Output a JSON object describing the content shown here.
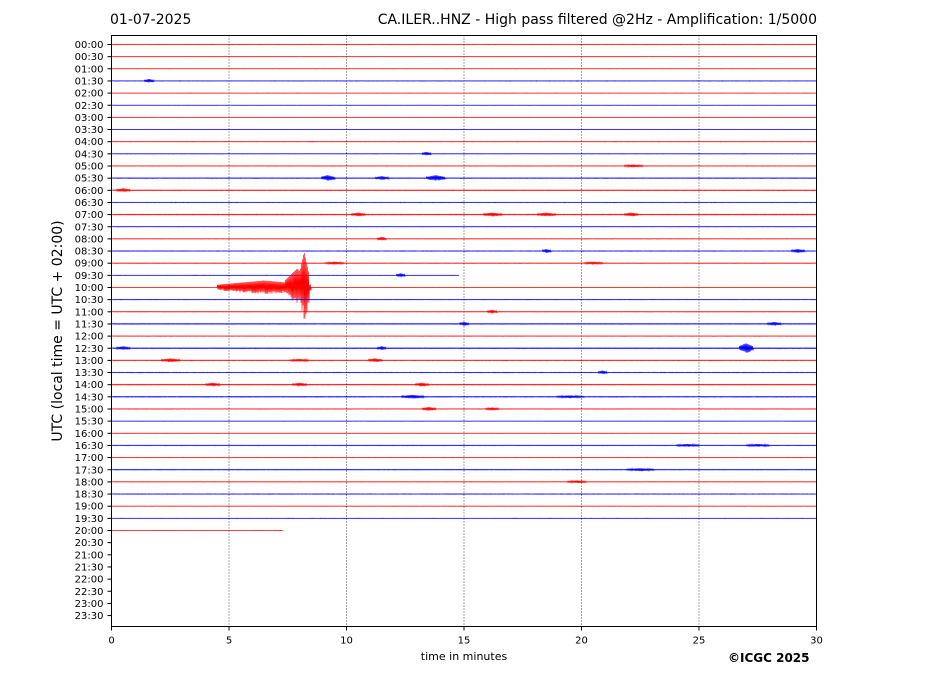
{
  "header": {
    "date": "01-07-2025",
    "title": "CA.ILER..HNZ - High pass filtered @2Hz - Amplification: 1/5000"
  },
  "copyright": "©ICGC 2025",
  "chart_data": {
    "type": "line",
    "title": "CA.ILER..HNZ - High pass filtered @2Hz - Amplification: 1/5000",
    "xlabel": "time in minutes",
    "ylabel": "UTC (local time = UTC + 02:00)",
    "xlim": [
      0,
      30
    ],
    "x_ticks": [
      "0",
      "5",
      "10",
      "15",
      "20",
      "25",
      "30"
    ],
    "y_ticks": [
      "00:00",
      "00:30",
      "01:00",
      "01:30",
      "02:00",
      "02:30",
      "03:00",
      "03:30",
      "04:00",
      "04:30",
      "05:00",
      "05:30",
      "06:00",
      "06:30",
      "07:00",
      "07:30",
      "08:00",
      "08:30",
      "09:00",
      "09:30",
      "10:00",
      "10:30",
      "11:00",
      "11:30",
      "12:00",
      "12:30",
      "13:00",
      "13:30",
      "14:00",
      "14:30",
      "15:00",
      "15:30",
      "16:00",
      "16:30",
      "17:00",
      "17:30",
      "18:00",
      "18:30",
      "19:00",
      "19:30",
      "20:00",
      "20:30",
      "21:00",
      "21:30",
      "22:00",
      "22:30",
      "23:00",
      "23:30"
    ],
    "grid": "vertical dotted lines at 5-minute intervals",
    "trace_colors": [
      "#ff0000",
      "#0000ff"
    ],
    "series": [
      {
        "row": "00:00",
        "color": "red",
        "end_minute": 30,
        "noise": 0.6,
        "events": []
      },
      {
        "row": "00:30",
        "color": "red",
        "end_minute": 30,
        "noise": 0.5,
        "events": []
      },
      {
        "row": "01:00",
        "color": "red",
        "end_minute": 30,
        "noise": 0.5,
        "events": []
      },
      {
        "row": "01:30",
        "color": "blue",
        "end_minute": 30,
        "noise": 0.6,
        "events": [
          {
            "minute": 1.6,
            "amp": 2,
            "dur": 0.2
          }
        ]
      },
      {
        "row": "02:00",
        "color": "red",
        "end_minute": 30,
        "noise": 0.5,
        "events": []
      },
      {
        "row": "02:30",
        "color": "blue",
        "end_minute": 30,
        "noise": 0.5,
        "events": []
      },
      {
        "row": "03:00",
        "color": "red",
        "end_minute": 30,
        "noise": 0.5,
        "events": []
      },
      {
        "row": "03:30",
        "color": "blue",
        "end_minute": 30,
        "noise": 0.5,
        "events": []
      },
      {
        "row": "04:00",
        "color": "red",
        "end_minute": 30,
        "noise": 0.6,
        "events": []
      },
      {
        "row": "04:30",
        "color": "blue",
        "end_minute": 30,
        "noise": 0.6,
        "events": [
          {
            "minute": 13.4,
            "amp": 2,
            "dur": 0.2
          }
        ]
      },
      {
        "row": "05:00",
        "color": "red",
        "end_minute": 30,
        "noise": 0.6,
        "events": [
          {
            "minute": 22.2,
            "amp": 1.5,
            "dur": 0.4
          }
        ]
      },
      {
        "row": "05:30",
        "color": "blue",
        "end_minute": 30,
        "noise": 0.8,
        "events": [
          {
            "minute": 9.2,
            "amp": 3,
            "dur": 0.3
          },
          {
            "minute": 11.5,
            "amp": 2,
            "dur": 0.3
          },
          {
            "minute": 13.8,
            "amp": 3,
            "dur": 0.4
          }
        ]
      },
      {
        "row": "06:00",
        "color": "red",
        "end_minute": 30,
        "noise": 0.8,
        "events": [
          {
            "minute": 0.5,
            "amp": 2,
            "dur": 0.3
          }
        ]
      },
      {
        "row": "06:30",
        "color": "blue",
        "end_minute": 30,
        "noise": 0.6,
        "events": []
      },
      {
        "row": "07:00",
        "color": "red",
        "end_minute": 30,
        "noise": 0.9,
        "events": [
          {
            "minute": 10.5,
            "amp": 2,
            "dur": 0.3
          },
          {
            "minute": 16.2,
            "amp": 2,
            "dur": 0.4
          },
          {
            "minute": 18.5,
            "amp": 2,
            "dur": 0.4
          },
          {
            "minute": 22.1,
            "amp": 2,
            "dur": 0.3
          }
        ]
      },
      {
        "row": "07:30",
        "color": "blue",
        "end_minute": 30,
        "noise": 0.6,
        "events": []
      },
      {
        "row": "08:00",
        "color": "red",
        "end_minute": 30,
        "noise": 0.6,
        "events": [
          {
            "minute": 11.5,
            "amp": 2,
            "dur": 0.2
          }
        ]
      },
      {
        "row": "08:30",
        "color": "blue",
        "end_minute": 30,
        "noise": 0.6,
        "events": [
          {
            "minute": 18.5,
            "amp": 2,
            "dur": 0.2
          },
          {
            "minute": 29.2,
            "amp": 2,
            "dur": 0.3
          }
        ]
      },
      {
        "row": "09:00",
        "color": "red",
        "end_minute": 30,
        "noise": 0.7,
        "events": [
          {
            "minute": 9.5,
            "amp": 1.5,
            "dur": 0.4
          },
          {
            "minute": 20.5,
            "amp": 1.5,
            "dur": 0.4
          }
        ]
      },
      {
        "row": "09:30",
        "color": "blue",
        "end_minute": 14.8,
        "noise": 0.5,
        "events": [
          {
            "minute": 12.3,
            "amp": 2,
            "dur": 0.2
          }
        ]
      },
      {
        "row": "10:00",
        "color": "red",
        "end_minute": 30,
        "noise": 0.5,
        "events": [
          {
            "minute": 6.5,
            "amp": 7,
            "dur": 2.0
          },
          {
            "minute": 7.9,
            "amp": 19,
            "dur": 0.5
          },
          {
            "minute": 8.2,
            "amp": 36,
            "dur": 0.2
          }
        ]
      },
      {
        "row": "10:30",
        "color": "blue",
        "end_minute": 30,
        "noise": 0.6,
        "events": []
      },
      {
        "row": "11:00",
        "color": "red",
        "end_minute": 30,
        "noise": 0.7,
        "events": [
          {
            "minute": 16.2,
            "amp": 2,
            "dur": 0.2
          }
        ]
      },
      {
        "row": "11:30",
        "color": "blue",
        "end_minute": 30,
        "noise": 0.8,
        "events": [
          {
            "minute": 15,
            "amp": 2,
            "dur": 0.2
          },
          {
            "minute": 28.2,
            "amp": 2,
            "dur": 0.3
          }
        ]
      },
      {
        "row": "12:00",
        "color": "red",
        "end_minute": 30,
        "noise": 0.6,
        "events": []
      },
      {
        "row": "12:30",
        "color": "blue",
        "end_minute": 30,
        "noise": 0.9,
        "events": [
          {
            "minute": 0.5,
            "amp": 2,
            "dur": 0.3
          },
          {
            "minute": 11.5,
            "amp": 2,
            "dur": 0.2
          },
          {
            "minute": 27,
            "amp": 5,
            "dur": 0.3
          }
        ]
      },
      {
        "row": "13:00",
        "color": "red",
        "end_minute": 30,
        "noise": 0.8,
        "events": [
          {
            "minute": 2.5,
            "amp": 2,
            "dur": 0.4
          },
          {
            "minute": 8,
            "amp": 1.5,
            "dur": 0.4
          },
          {
            "minute": 11.2,
            "amp": 2,
            "dur": 0.3
          }
        ]
      },
      {
        "row": "13:30",
        "color": "blue",
        "end_minute": 30,
        "noise": 0.6,
        "events": [
          {
            "minute": 20.9,
            "amp": 2,
            "dur": 0.2
          }
        ]
      },
      {
        "row": "14:00",
        "color": "red",
        "end_minute": 30,
        "noise": 0.8,
        "events": [
          {
            "minute": 4.3,
            "amp": 2,
            "dur": 0.3
          },
          {
            "minute": 8,
            "amp": 2,
            "dur": 0.3
          },
          {
            "minute": 13.2,
            "amp": 2,
            "dur": 0.3
          }
        ]
      },
      {
        "row": "14:30",
        "color": "blue",
        "end_minute": 30,
        "noise": 0.8,
        "events": [
          {
            "minute": 12.8,
            "amp": 2,
            "dur": 0.5
          },
          {
            "minute": 19.5,
            "amp": 1.5,
            "dur": 0.6
          }
        ]
      },
      {
        "row": "15:00",
        "color": "red",
        "end_minute": 30,
        "noise": 0.6,
        "events": [
          {
            "minute": 13.5,
            "amp": 2,
            "dur": 0.3
          },
          {
            "minute": 16.2,
            "amp": 1.5,
            "dur": 0.3
          }
        ]
      },
      {
        "row": "15:30",
        "color": "blue",
        "end_minute": 30,
        "noise": 0.5,
        "events": []
      },
      {
        "row": "16:00",
        "color": "red",
        "end_minute": 30,
        "noise": 0.5,
        "events": []
      },
      {
        "row": "16:30",
        "color": "blue",
        "end_minute": 30,
        "noise": 0.7,
        "events": [
          {
            "minute": 24.5,
            "amp": 1.5,
            "dur": 0.5
          },
          {
            "minute": 27.5,
            "amp": 1.5,
            "dur": 0.5
          }
        ]
      },
      {
        "row": "17:00",
        "color": "red",
        "end_minute": 30,
        "noise": 0.5,
        "events": []
      },
      {
        "row": "17:30",
        "color": "blue",
        "end_minute": 30,
        "noise": 0.7,
        "events": [
          {
            "minute": 22.5,
            "amp": 1.5,
            "dur": 0.6
          }
        ]
      },
      {
        "row": "18:00",
        "color": "red",
        "end_minute": 30,
        "noise": 0.6,
        "events": [
          {
            "minute": 19.8,
            "amp": 1.5,
            "dur": 0.4
          }
        ]
      },
      {
        "row": "18:30",
        "color": "blue",
        "end_minute": 30,
        "noise": 0.6,
        "events": []
      },
      {
        "row": "19:00",
        "color": "red",
        "end_minute": 30,
        "noise": 0.5,
        "events": []
      },
      {
        "row": "19:30",
        "color": "blue",
        "end_minute": 30,
        "noise": 0.5,
        "events": []
      },
      {
        "row": "20:00",
        "color": "red",
        "end_minute": 7.3,
        "noise": 0.4,
        "events": []
      }
    ]
  }
}
